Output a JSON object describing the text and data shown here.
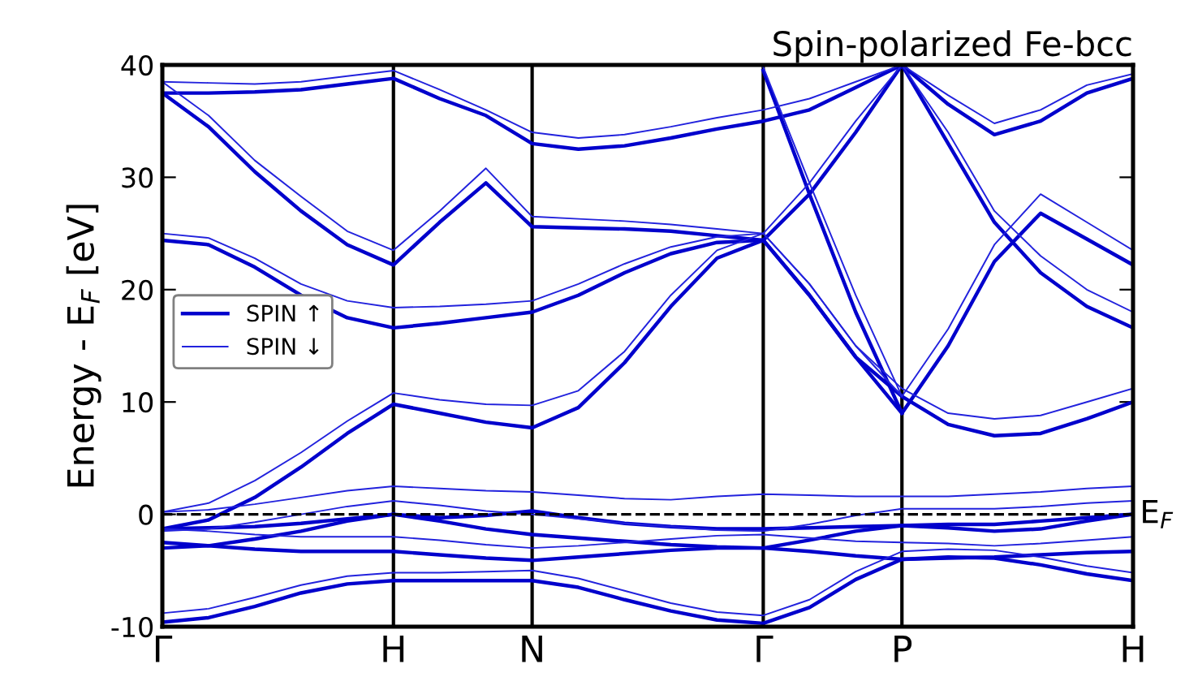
{
  "chart_data": {
    "type": "line",
    "title": "Spin-polarized Fe-bcc",
    "ylabel": "Energy - E$_{F}$ [eV]",
    "categories": [
      "Γ",
      null,
      null,
      null,
      null,
      "H",
      null,
      null,
      "N",
      null,
      null,
      null,
      null,
      "Γ",
      null,
      null,
      "P",
      null,
      null,
      null,
      null,
      "H"
    ],
    "ylim": [
      -10,
      40
    ],
    "yticks": [
      -10,
      0,
      10,
      20,
      30,
      40
    ],
    "grid": "x",
    "legend": "left",
    "line_style": "solid",
    "marker": "none",
    "ref_lines": [
      {
        "axis": "y",
        "value": 0,
        "label": "E$_{F}$",
        "color": "#000000",
        "line_style": "dashed"
      }
    ],
    "series": [
      {
        "name": "SPIN ↑",
        "color": "#0000cc",
        "values": [
          -9.6,
          -9.2,
          -8.2,
          -7.0,
          -6.2,
          -5.9,
          -5.9,
          -5.9,
          -5.9,
          -6.5,
          -7.6,
          -8.6,
          -9.4,
          -9.7,
          -8.3,
          -5.8,
          -4.0,
          -3.8,
          -3.9,
          -4.5,
          -5.3,
          -5.9
        ]
      },
      {
        "color": "#0000cc",
        "values": [
          -3.0,
          -2.8,
          -2.2,
          -1.5,
          -0.6,
          0.0,
          -0.6,
          -1.3,
          -1.8,
          -2.1,
          -2.4,
          -2.7,
          -2.9,
          -3.0,
          -2.3,
          -1.5,
          -1.0,
          -0.9,
          -0.9,
          -0.6,
          -0.3,
          0.0
        ]
      },
      {
        "color": "#0000cc",
        "values": [
          -1.3,
          -1.2,
          -1.1,
          -0.8,
          -0.4,
          0.0,
          -0.3,
          -0.1,
          0.3,
          -0.3,
          -0.8,
          -1.1,
          -1.3,
          -1.3,
          -1.2,
          -1.1,
          -1.0,
          -1.2,
          -1.5,
          -1.3,
          -0.6,
          0.0
        ]
      },
      {
        "color": "#0000cc",
        "values": [
          -2.5,
          -2.8,
          -3.1,
          -3.3,
          -3.3,
          -3.3,
          -3.6,
          -3.9,
          -4.1,
          -3.8,
          -3.5,
          -3.2,
          -3.0,
          -3.0,
          -3.3,
          -3.7,
          -4.0,
          -3.9,
          -3.8,
          -3.6,
          -3.4,
          -3.3
        ]
      },
      {
        "color": "#0000cc",
        "values": [
          -1.3,
          -0.5,
          1.5,
          4.2,
          7.2,
          9.8,
          9.0,
          8.2,
          7.7,
          9.5,
          13.5,
          18.5,
          22.8,
          24.4,
          19.5,
          14.0,
          9.0,
          15.0,
          22.5,
          26.8,
          24.5,
          22.2
        ]
      },
      {
        "color": "#0000cc",
        "values": [
          24.4,
          24.0,
          22.0,
          19.5,
          17.5,
          16.6,
          17.0,
          17.5,
          18.0,
          19.5,
          21.5,
          23.2,
          24.2,
          24.4,
          19.5,
          14.0,
          10.5,
          8.0,
          7.0,
          7.2,
          8.5,
          10.0
        ]
      },
      {
        "color": "#0000cc",
        "values": [
          37.5,
          34.5,
          30.5,
          27.0,
          24.0,
          22.2,
          26.0,
          29.5,
          25.6,
          25.5,
          25.4,
          25.2,
          24.8,
          24.4,
          28.5,
          34.0,
          40.0,
          36.5,
          33.8,
          35.0,
          37.5,
          38.8
        ]
      },
      {
        "color": "#0000cc",
        "values": [
          37.5,
          37.5,
          37.6,
          37.8,
          38.3,
          38.8,
          37.0,
          35.5,
          33.0,
          32.5,
          32.8,
          33.5,
          34.3,
          35.0,
          36.0,
          38.0,
          40.0,
          null,
          null,
          null,
          null,
          null
        ]
      },
      {
        "color": "#0000cc",
        "values": [
          null,
          null,
          null,
          null,
          null,
          null,
          null,
          null,
          null,
          null,
          null,
          null,
          null,
          null,
          null,
          null,
          40.0,
          33.0,
          26.0,
          21.5,
          18.5,
          16.6
        ]
      },
      {
        "color": "#0000cc",
        "values": [
          null,
          null,
          null,
          null,
          null,
          null,
          null,
          null,
          null,
          null,
          null,
          null,
          null,
          39.5,
          28.5,
          18.0,
          9.0,
          null,
          null,
          null,
          null,
          null
        ]
      },
      {
        "name": "SPIN ↓",
        "color": "#2222dd",
        "values": [
          -8.8,
          -8.4,
          -7.4,
          -6.3,
          -5.5,
          -5.2,
          -5.2,
          -5.1,
          -5.0,
          -5.7,
          -6.8,
          -7.9,
          -8.7,
          -9.0,
          -7.6,
          -5.1,
          -3.3,
          -3.1,
          -3.2,
          -3.8,
          -4.6,
          -5.2
        ]
      },
      {
        "color": "#2222dd",
        "values": [
          -1.5,
          -1.3,
          -0.7,
          0.0,
          0.7,
          1.2,
          0.8,
          0.3,
          0.0,
          -0.4,
          -0.8,
          -1.1,
          -1.4,
          -1.5,
          -0.9,
          -0.1,
          0.5,
          0.5,
          0.5,
          0.7,
          1.0,
          1.2
        ]
      },
      {
        "color": "#2222dd",
        "values": [
          0.2,
          0.4,
          0.9,
          1.5,
          2.1,
          2.5,
          2.3,
          2.1,
          2.0,
          1.7,
          1.4,
          1.3,
          1.6,
          1.8,
          1.7,
          1.6,
          1.6,
          1.6,
          1.8,
          2.0,
          2.3,
          2.5
        ]
      },
      {
        "color": "#2222dd",
        "values": [
          -1.3,
          -1.5,
          -1.8,
          -2.0,
          -2.0,
          -2.0,
          -2.3,
          -2.7,
          -3.0,
          -2.8,
          -2.5,
          -2.2,
          -1.9,
          -1.8,
          -2.1,
          -2.4,
          -2.5,
          -2.6,
          -2.8,
          -2.6,
          -2.3,
          -2.0
        ]
      },
      {
        "color": "#2222dd",
        "values": [
          0.2,
          1.0,
          3.0,
          5.5,
          8.3,
          10.8,
          10.2,
          9.8,
          9.7,
          11.0,
          14.5,
          19.5,
          23.5,
          25.0,
          20.5,
          15.0,
          10.5,
          16.5,
          24.0,
          28.5,
          26.0,
          23.5
        ]
      },
      {
        "color": "#2222dd",
        "values": [
          25.0,
          24.6,
          22.8,
          20.5,
          19.0,
          18.4,
          18.5,
          18.7,
          19.0,
          20.5,
          22.3,
          23.8,
          24.7,
          25.0,
          20.5,
          15.0,
          11.2,
          9.0,
          8.5,
          8.8,
          10.0,
          11.2
        ]
      },
      {
        "color": "#2222dd",
        "values": [
          38.5,
          35.5,
          31.5,
          28.3,
          25.2,
          23.5,
          27.0,
          30.8,
          26.5,
          26.3,
          26.1,
          25.8,
          25.4,
          25.0,
          29.5,
          35.0,
          40.0,
          37.3,
          34.8,
          36.0,
          38.2,
          39.2
        ]
      },
      {
        "color": "#2222dd",
        "values": [
          38.5,
          38.4,
          38.3,
          38.5,
          39.0,
          39.5,
          37.8,
          36.0,
          34.0,
          33.5,
          33.8,
          34.5,
          35.3,
          36.0,
          37.0,
          38.5,
          40.0,
          null,
          null,
          null,
          null,
          null
        ]
      },
      {
        "color": "#2222dd",
        "values": [
          null,
          null,
          null,
          null,
          null,
          null,
          null,
          null,
          null,
          null,
          null,
          null,
          null,
          null,
          null,
          null,
          40.0,
          34.0,
          27.0,
          23.0,
          20.0,
          18.0
        ]
      },
      {
        "color": "#2222dd",
        "values": [
          null,
          null,
          null,
          null,
          null,
          null,
          null,
          null,
          null,
          null,
          null,
          null,
          null,
          39.8,
          29.5,
          19.5,
          10.5,
          null,
          null,
          null,
          null,
          null
        ]
      }
    ]
  }
}
